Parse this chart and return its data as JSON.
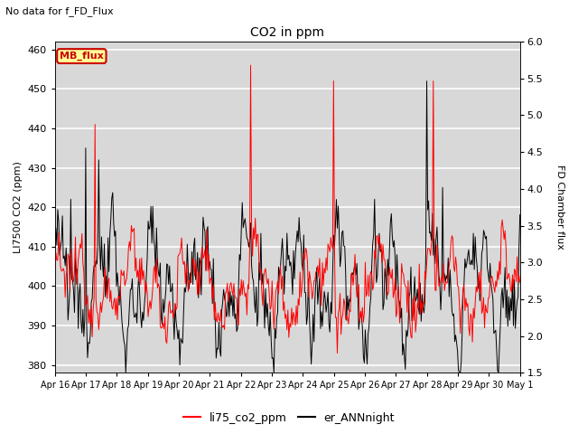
{
  "title": "CO2 in ppm",
  "subtitle": "No data for f_FD_Flux",
  "ylabel_left": "LI7500 CO2 (ppm)",
  "ylabel_right": "FD Chamber flux",
  "ylim_left": [
    378,
    462
  ],
  "ylim_right": [
    1.5,
    6.0
  ],
  "yticks_left": [
    380,
    390,
    400,
    410,
    420,
    430,
    440,
    450,
    460
  ],
  "yticks_right": [
    1.5,
    2.0,
    2.5,
    3.0,
    3.5,
    4.0,
    4.5,
    5.0,
    5.5,
    6.0
  ],
  "xlabel_ticks": [
    "Apr 16",
    "Apr 17",
    "Apr 18",
    "Apr 19",
    "Apr 20",
    "Apr 21",
    "Apr 22",
    "Apr 23",
    "Apr 24",
    "Apr 25",
    "Apr 26",
    "Apr 27",
    "Apr 28",
    "Apr 29",
    "Apr 30",
    "May 1"
  ],
  "legend_entries": [
    "li75_co2_ppm",
    "er_ANNnight"
  ],
  "legend_colors": [
    "#ff0000",
    "#000000"
  ],
  "mb_flux_label": "MB_flux",
  "mb_flux_color": "#cc0000",
  "mb_flux_bg": "#ffff99",
  "bg_color": "#d8d8d8",
  "grid_color": "#ffffff",
  "line_color_red": "#ff0000",
  "line_color_black": "#000000",
  "n_points": 500
}
